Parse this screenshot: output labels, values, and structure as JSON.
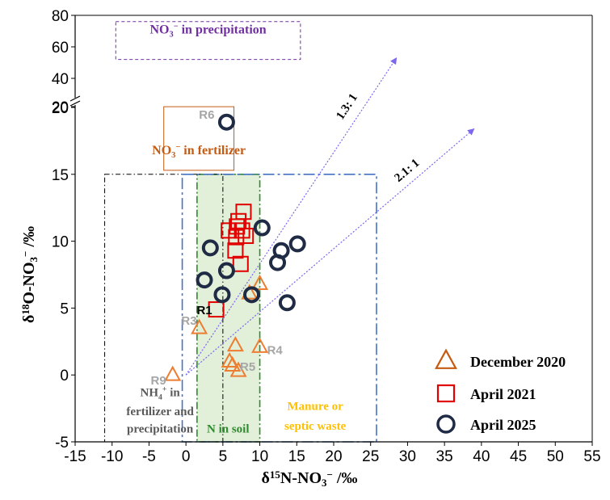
{
  "chart_data": {
    "type": "scatter",
    "xlabel": "δ15N-NO3− /‰",
    "ylabel": "δ18O-NO3− /‰",
    "xlim": [
      -15,
      55
    ],
    "ylim": [
      -5,
      80
    ],
    "y_axis_break": [
      20,
      40
    ],
    "x_ticks": [
      "-15",
      "-10",
      "-5",
      "0",
      "5",
      "10",
      "15",
      "20",
      "25",
      "30",
      "35",
      "40",
      "45",
      "50",
      "55"
    ],
    "y_ticks_lower": [
      "-5",
      "0",
      "5",
      "10",
      "15",
      "20"
    ],
    "y_ticks_upper": [
      "20",
      "40",
      "60",
      "80"
    ],
    "grid": false,
    "legend_position": "bottom-right",
    "colors": {
      "december_2020": "#c55a11",
      "december_2020_markers": "#ed7d31",
      "april_2021": "#e00000",
      "april_2025": "#1f2a44",
      "precipitation": "#7030a0",
      "fertilizer": "#c55a11",
      "soil_fill": "#e2efd9",
      "soil_border": "#2e8b2e",
      "manure": "#ffc000",
      "manure_border": "#4472c4",
      "ratio_lines": "#7b68ee"
    },
    "series": [
      {
        "name": "December 2020",
        "marker": "triangle",
        "points": [
          [
            -1.8,
            0
          ],
          [
            1.8,
            3.5
          ],
          [
            10,
            6.8
          ],
          [
            10,
            2.1
          ],
          [
            6.7,
            2.2
          ],
          [
            5.9,
            1
          ],
          [
            6.3,
            0.7
          ],
          [
            7.1,
            0.3
          ],
          [
            8.6,
            6.1
          ]
        ]
      },
      {
        "name": "April 2021",
        "marker": "square",
        "points": [
          [
            4.1,
            4.9
          ],
          [
            7.8,
            12.2
          ],
          [
            7.1,
            11.5
          ],
          [
            6.9,
            11.1
          ],
          [
            5.8,
            10.8
          ],
          [
            7.6,
            10.8
          ],
          [
            8.1,
            10.4
          ],
          [
            6.8,
            10.3
          ],
          [
            6.7,
            9.3
          ],
          [
            7.4,
            8.3
          ]
        ]
      },
      {
        "name": "April 2025",
        "marker": "circle",
        "points": [
          [
            5.5,
            18.9
          ],
          [
            3.3,
            9.5
          ],
          [
            5.5,
            7.8
          ],
          [
            2.5,
            7.1
          ],
          [
            4.9,
            6
          ],
          [
            8.9,
            6
          ],
          [
            10.3,
            11
          ],
          [
            12.9,
            9.3
          ],
          [
            15.1,
            9.8
          ],
          [
            12.4,
            8.4
          ],
          [
            13.7,
            5.4
          ]
        ]
      }
    ],
    "point_labels": [
      {
        "text": "R6",
        "x": 5.5,
        "y": 18.9
      },
      {
        "text": "R1",
        "x": 4.1,
        "y": 4.9
      },
      {
        "text": "R3",
        "x": 1.8,
        "y": 3.5
      },
      {
        "text": "R4",
        "x": 10,
        "y": 2.1
      },
      {
        "text": "R5",
        "x": 7.1,
        "y": 0.3
      },
      {
        "text": "R9",
        "x": -1.8,
        "y": 0
      }
    ],
    "source_regions": [
      {
        "name": "NO3− in precipitation",
        "x": [
          -9.5,
          15.5
        ],
        "y": [
          52,
          76
        ]
      },
      {
        "name": "NO3− in fertilizer",
        "x": [
          -3,
          6.5
        ],
        "y": [
          15.3,
          20.5
        ]
      },
      {
        "name": "NH4+ in fertilizer and precipitation",
        "x": [
          -11,
          5
        ],
        "y": [
          -5,
          15
        ]
      },
      {
        "name": "N in soil",
        "x": [
          1.5,
          10
        ],
        "y": [
          -5,
          15
        ]
      },
      {
        "name": "Manure or septic waste",
        "x": [
          -0.5,
          25.8
        ],
        "y": [
          -5,
          15
        ]
      }
    ],
    "ratio_lines": [
      {
        "label": "1.3: 1",
        "from": [
          0,
          0
        ],
        "to": [
          28.5,
          53
        ]
      },
      {
        "label": "2.1: 1",
        "from": [
          0,
          0
        ],
        "to": [
          39,
          18.4
        ]
      }
    ]
  }
}
